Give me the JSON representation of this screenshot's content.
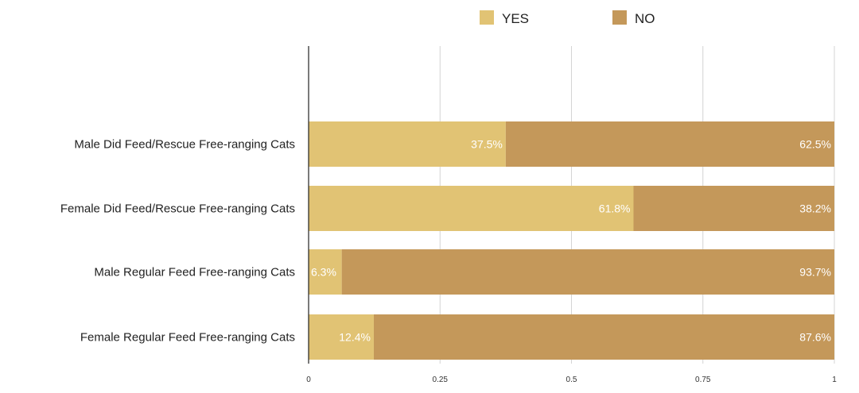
{
  "chart_data": {
    "type": "bar",
    "orientation": "horizontal",
    "stacked": true,
    "categories": [
      "Male Did Feed/Rescue Free-ranging Cats",
      "Female Did Feed/Rescue Free-ranging Cats",
      "Male Regular Feed Free-ranging Cats",
      "Female Regular Feed Free-ranging Cats"
    ],
    "series": [
      {
        "name": "YES",
        "color": "#e1c374",
        "values": [
          0.375,
          0.618,
          0.063,
          0.124
        ],
        "labels": [
          "37.5%",
          "61.8%",
          "6.3%",
          "12.4%"
        ]
      },
      {
        "name": "NO",
        "color": "#c4985a",
        "values": [
          0.625,
          0.382,
          0.937,
          0.876
        ],
        "labels": [
          "62.5%",
          "38.2%",
          "93.7%",
          "87.6%"
        ]
      }
    ],
    "xlim": [
      0,
      1
    ],
    "xticks": [
      "0",
      "0.25",
      "0.5",
      "0.75",
      "1"
    ],
    "xtick_values": [
      0,
      0.25,
      0.5,
      0.75,
      1
    ],
    "grid": true,
    "legend": "top-center",
    "title": "",
    "xlabel": "",
    "ylabel": ""
  }
}
